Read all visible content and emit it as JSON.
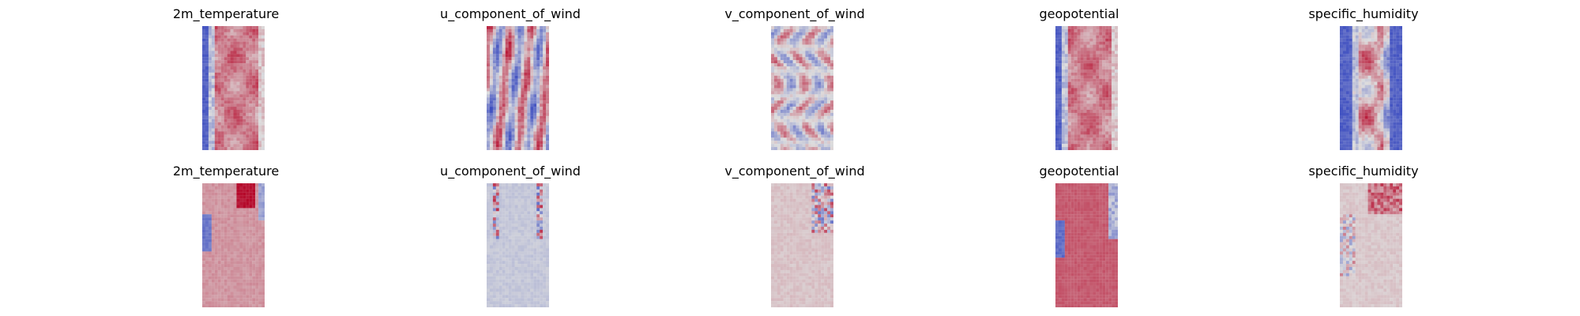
{
  "figure": {
    "colormap": "coolwarm",
    "colors": {
      "cool": "#3b4cc0",
      "neutral": "#dddddd",
      "warm": "#b40426"
    }
  },
  "chart_data": [
    {
      "type": "heatmap",
      "title": "2m_temperature",
      "row": 1,
      "column": 1,
      "axes_visible": false,
      "grid": false,
      "pattern": "cool-left-edge-warm-center"
    },
    {
      "type": "heatmap",
      "title": "u_component_of_wind",
      "row": 1,
      "column": 2,
      "axes_visible": false,
      "grid": false,
      "pattern": "mixed-bands"
    },
    {
      "type": "heatmap",
      "title": "v_component_of_wind",
      "row": 1,
      "column": 3,
      "axes_visible": false,
      "grid": false,
      "pattern": "mixed-eddies"
    },
    {
      "type": "heatmap",
      "title": "geopotential",
      "row": 1,
      "column": 4,
      "axes_visible": false,
      "grid": false,
      "pattern": "cool-left-edge-warm-center"
    },
    {
      "type": "heatmap",
      "title": "specific_humidity",
      "row": 1,
      "column": 5,
      "axes_visible": false,
      "grid": false,
      "pattern": "cool-edges-warm-center"
    },
    {
      "type": "heatmap",
      "title": "2m_temperature",
      "row": 2,
      "column": 1,
      "axes_visible": false,
      "grid": false,
      "pattern": "mostly-light-warm"
    },
    {
      "type": "heatmap",
      "title": "u_component_of_wind",
      "row": 2,
      "column": 2,
      "axes_visible": false,
      "grid": false,
      "pattern": "mostly-neutral-cool"
    },
    {
      "type": "heatmap",
      "title": "v_component_of_wind",
      "row": 2,
      "column": 3,
      "axes_visible": false,
      "grid": false,
      "pattern": "mostly-neutral-warm"
    },
    {
      "type": "heatmap",
      "title": "geopotential",
      "row": 2,
      "column": 4,
      "axes_visible": false,
      "grid": false,
      "pattern": "mostly-warm"
    },
    {
      "type": "heatmap",
      "title": "specific_humidity",
      "row": 2,
      "column": 5,
      "axes_visible": false,
      "grid": false,
      "pattern": "mostly-neutral-warm-top"
    }
  ]
}
